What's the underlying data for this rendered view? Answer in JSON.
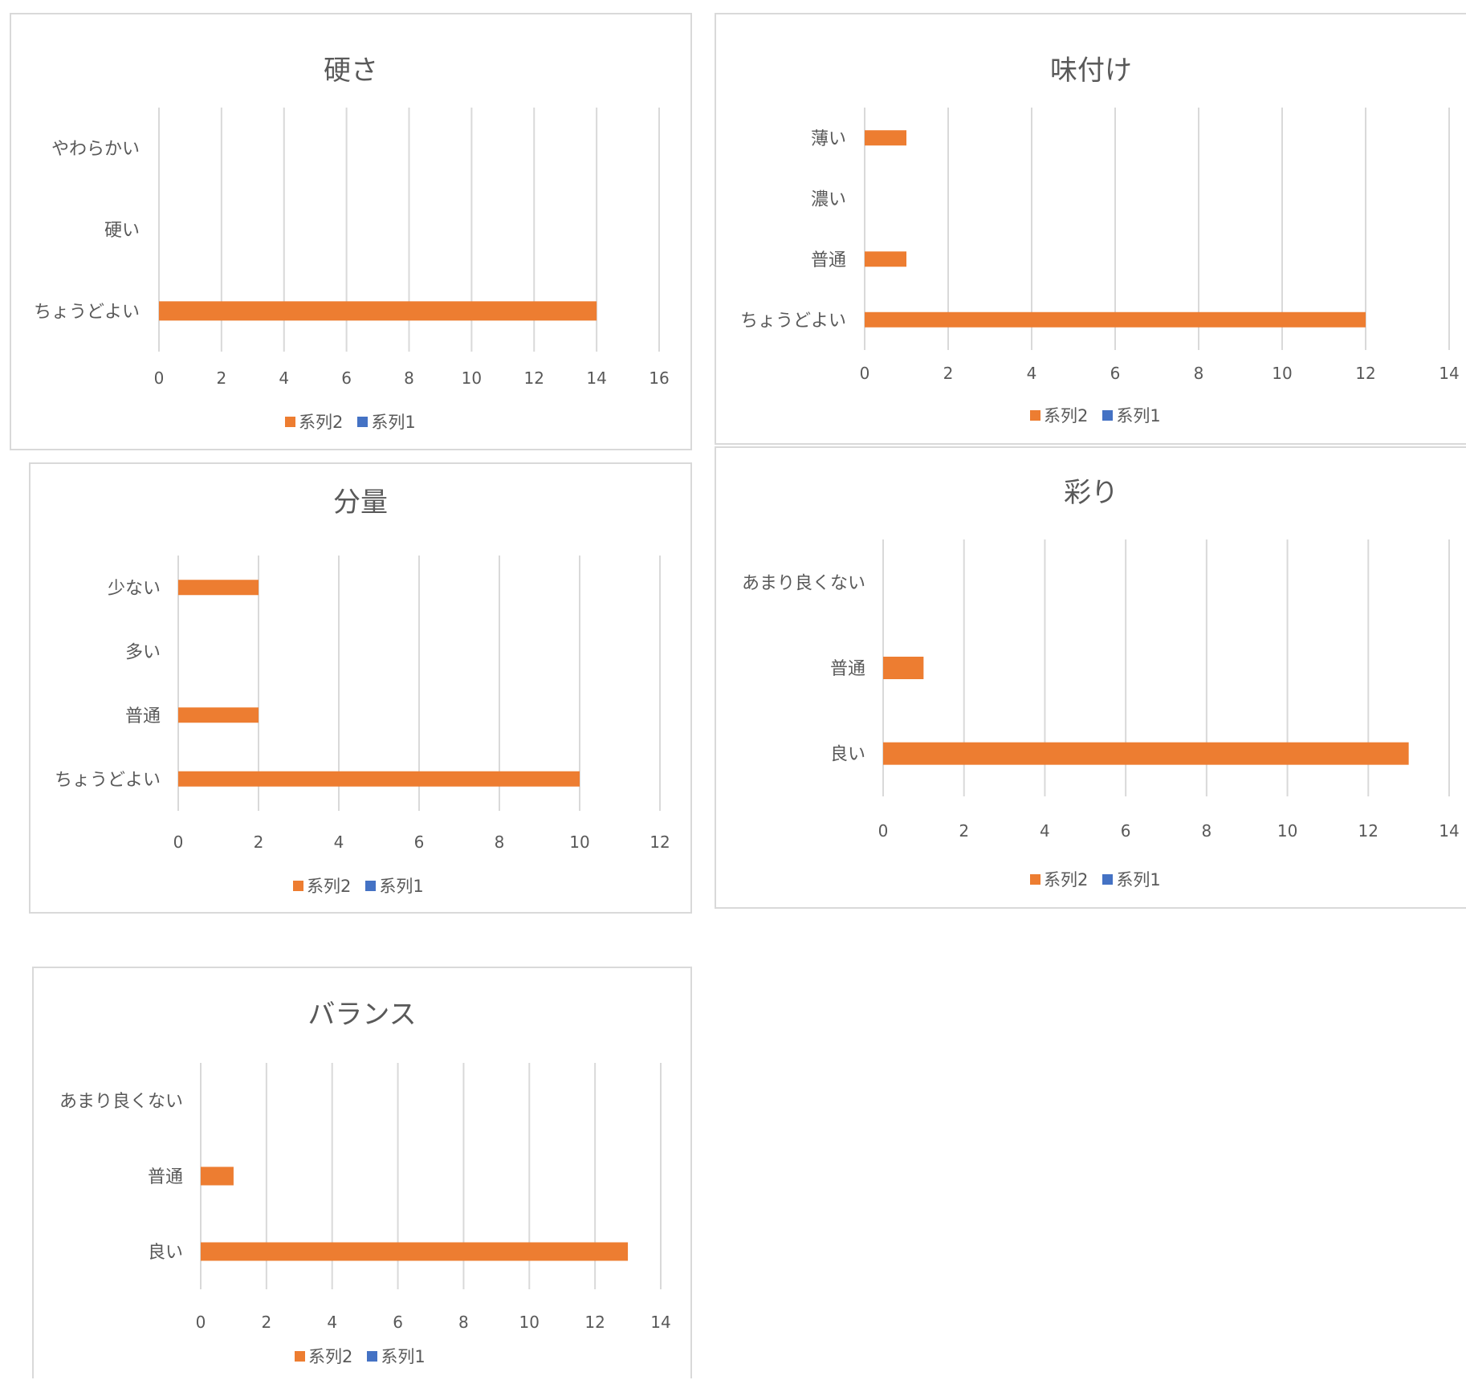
{
  "colors": {
    "series2": "#ED7D31",
    "series1": "#4472C4",
    "grid": "#d9d9d9",
    "text": "#595959"
  },
  "chart_data": [
    {
      "type": "bar",
      "orientation": "horizontal",
      "title": "硬さ",
      "categories": [
        "ちょうどよい",
        "硬い",
        "やわらかい"
      ],
      "series": [
        {
          "name": "系列2",
          "values": [
            14,
            0,
            0
          ]
        },
        {
          "name": "系列1",
          "values": [
            0,
            0,
            0
          ]
        }
      ],
      "xlim": [
        0,
        16
      ],
      "xticks": [
        "0",
        "2",
        "4",
        "6",
        "8",
        "10",
        "12",
        "14",
        "16"
      ],
      "grid": true,
      "legend": "bottom"
    },
    {
      "type": "bar",
      "orientation": "horizontal",
      "title": "味付け",
      "categories": [
        "ちょうどよい",
        "普通",
        "濃い",
        "薄い"
      ],
      "series": [
        {
          "name": "系列2",
          "values": [
            12,
            1,
            0,
            1
          ]
        },
        {
          "name": "系列1",
          "values": [
            0,
            0,
            0,
            0
          ]
        }
      ],
      "xlim": [
        0,
        14
      ],
      "xticks": [
        "0",
        "2",
        "4",
        "6",
        "8",
        "10",
        "12",
        "14"
      ],
      "grid": true,
      "legend": "bottom"
    },
    {
      "type": "bar",
      "orientation": "horizontal",
      "title": "分量",
      "categories": [
        "ちょうどよい",
        "普通",
        "多い",
        "少ない"
      ],
      "series": [
        {
          "name": "系列2",
          "values": [
            10,
            2,
            0,
            2
          ]
        },
        {
          "name": "系列1",
          "values": [
            0,
            0,
            0,
            0
          ]
        }
      ],
      "xlim": [
        0,
        12
      ],
      "xticks": [
        "0",
        "2",
        "4",
        "6",
        "8",
        "10",
        "12"
      ],
      "grid": true,
      "legend": "bottom"
    },
    {
      "type": "bar",
      "orientation": "horizontal",
      "title": "彩り",
      "categories": [
        "良い",
        "普通",
        "あまり良くない"
      ],
      "series": [
        {
          "name": "系列2",
          "values": [
            13,
            1,
            0
          ]
        },
        {
          "name": "系列1",
          "values": [
            0,
            0,
            0
          ]
        }
      ],
      "xlim": [
        0,
        14
      ],
      "xticks": [
        "0",
        "2",
        "4",
        "6",
        "8",
        "10",
        "12",
        "14"
      ],
      "grid": true,
      "legend": "bottom"
    },
    {
      "type": "bar",
      "orientation": "horizontal",
      "title": "バランス",
      "categories": [
        "良い",
        "普通",
        "あまり良くない"
      ],
      "series": [
        {
          "name": "系列2",
          "values": [
            13,
            1,
            0
          ]
        },
        {
          "name": "系列1",
          "values": [
            0,
            0,
            0
          ]
        }
      ],
      "xlim": [
        0,
        14
      ],
      "xticks": [
        "0",
        "2",
        "4",
        "6",
        "8",
        "10",
        "12",
        "14"
      ],
      "grid": true,
      "legend": "bottom"
    }
  ]
}
